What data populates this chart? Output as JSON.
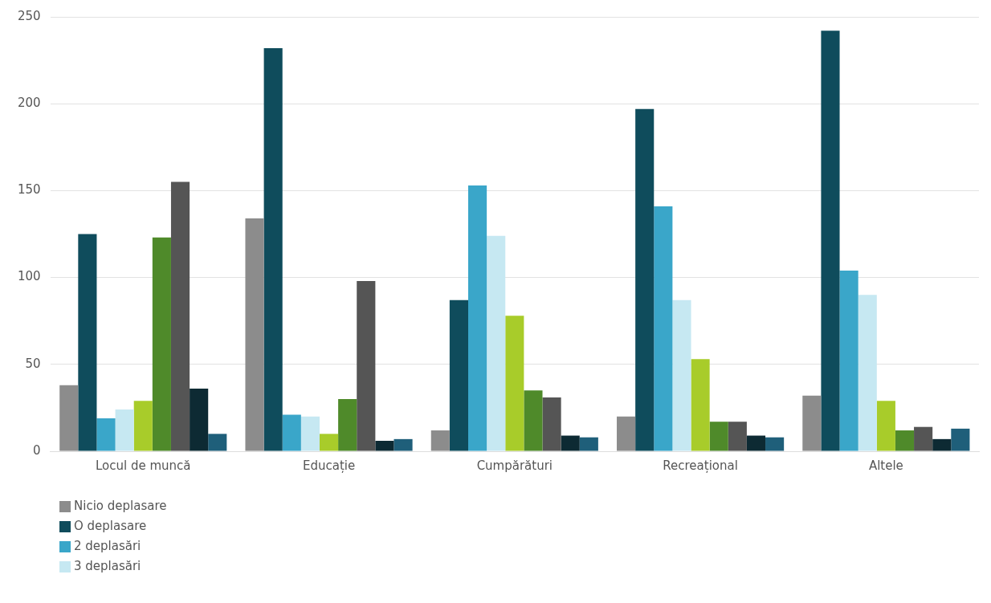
{
  "chart_data": {
    "type": "bar",
    "categories": [
      "Locul de muncă",
      "Educație",
      "Cumpărături",
      "Recreațional",
      "Altele"
    ],
    "series": [
      {
        "name": "Nicio deplasare",
        "color": "#8c8c8c",
        "values": [
          38,
          134,
          12,
          20,
          32
        ]
      },
      {
        "name": "O deplasare",
        "color": "#0f4c5c",
        "values": [
          125,
          232,
          87,
          197,
          242
        ]
      },
      {
        "name": "2 deplasări",
        "color": "#3aa6c9",
        "values": [
          19,
          21,
          153,
          141,
          104
        ]
      },
      {
        "name": "3 deplasări",
        "color": "#c6e8f2",
        "values": [
          24,
          20,
          124,
          87,
          90
        ]
      },
      {
        "color": "#a8cc2a",
        "values": [
          29,
          10,
          78,
          53,
          29
        ]
      },
      {
        "color": "#4f8a2a",
        "values": [
          123,
          30,
          35,
          17,
          12
        ]
      },
      {
        "color": "#555555",
        "values": [
          155,
          98,
          31,
          17,
          14
        ]
      },
      {
        "color": "#0d2a33",
        "values": [
          36,
          6,
          9,
          9,
          7
        ]
      },
      {
        "color": "#1f5f7a",
        "values": [
          10,
          7,
          8,
          8,
          13
        ]
      }
    ],
    "ylim": [
      0,
      250
    ],
    "yticks": [
      0,
      50,
      100,
      150,
      200,
      250
    ],
    "grid": "y",
    "legend": "bottom"
  }
}
